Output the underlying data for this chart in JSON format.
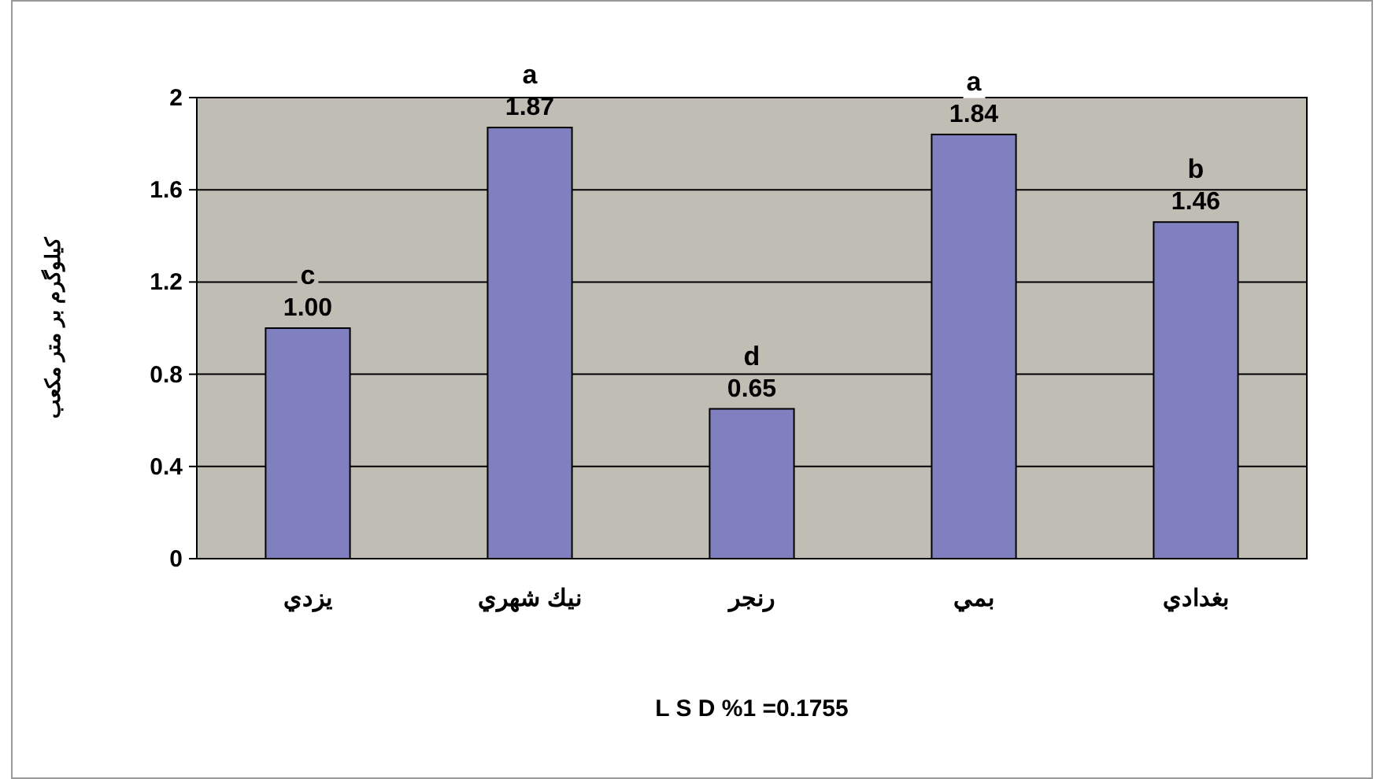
{
  "chart_data": {
    "type": "bar",
    "ylabel": "كيلوگرم بر متر مكعب",
    "categories": [
      "يزدي",
      "نيك شهري",
      "رنجر",
      "بمي",
      "بغدادي"
    ],
    "values": [
      1.0,
      1.87,
      0.65,
      1.84,
      1.46
    ],
    "value_labels": [
      "1.00",
      "1.87",
      "0.65",
      "1.84",
      "1.46"
    ],
    "color": "#8080c0",
    "ylim": [
      0,
      2
    ],
    "yticks": [
      0,
      0.4,
      0.8,
      1.2,
      1.6,
      2
    ],
    "grid": "y",
    "annotations": [
      {
        "text": "c",
        "x": "يزدي",
        "y": 1.0
      },
      {
        "text": "a",
        "x": "نيك شهري",
        "y": 1.87
      },
      {
        "text": "d",
        "x": "رنجر",
        "y": 0.65
      },
      {
        "text": "a",
        "x": "بمي",
        "y": 1.84
      },
      {
        "text": "b",
        "x": "بغدادي",
        "y": 1.46
      },
      "L S D %1 =0.1755"
    ]
  }
}
